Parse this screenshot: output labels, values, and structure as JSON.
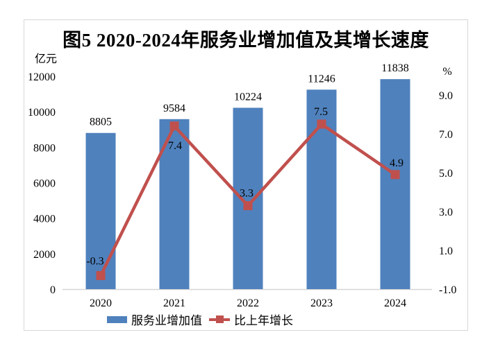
{
  "chart_data": {
    "type": "bar",
    "subtype": "bar+line combo, dual axis",
    "title": "图5 2020-2024年服务业增加值及其增长速度",
    "categories": [
      "2020",
      "2021",
      "2022",
      "2023",
      "2024"
    ],
    "series": [
      {
        "name": "服务业增加值",
        "type": "bar",
        "axis": "left",
        "values": [
          8805,
          9584,
          10224,
          11246,
          11838
        ],
        "labels": [
          "8805",
          "9584",
          "10224",
          "11246",
          "11838"
        ],
        "color": "#4F81BD"
      },
      {
        "name": "比上年增长",
        "type": "line",
        "axis": "right",
        "values": [
          -0.3,
          7.4,
          3.3,
          7.5,
          4.9
        ],
        "labels": [
          "-0.3",
          "7.4",
          "3.3",
          "7.5",
          "4.9"
        ],
        "color": "#C0504D",
        "marker": "square"
      }
    ],
    "left_axis": {
      "unit": "亿元",
      "min": 0,
      "max": 12000,
      "step": 2000,
      "tick_values": [
        0,
        2000,
        4000,
        6000,
        8000,
        10000,
        12000
      ],
      "tick_labels": [
        "0",
        "2000",
        "4000",
        "6000",
        "8000",
        "10000",
        "12000"
      ]
    },
    "right_axis": {
      "unit": "%",
      "min": -1.0,
      "max": 11.0,
      "step": 2.0,
      "tick_values": [
        -1,
        1,
        3,
        5,
        7,
        9
      ],
      "tick_labels": [
        "-1.0",
        "1.0",
        "3.0",
        "5.0",
        "7.0",
        "9.0"
      ]
    },
    "grid": "off",
    "legend_position": "bottom",
    "frame_border_color": "#d7d7d7",
    "axis_line_color": "#d6d6d6",
    "text_color": "#000000"
  }
}
